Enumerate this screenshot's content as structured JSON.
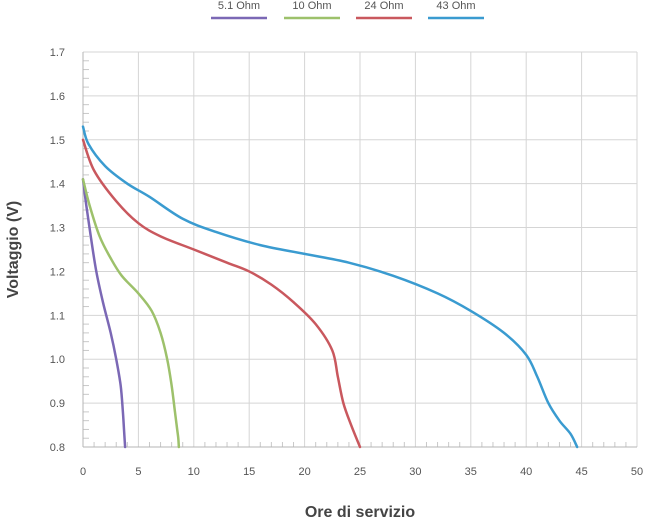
{
  "chart_data": {
    "type": "line",
    "title": "",
    "xlabel": "Ore di servizio",
    "ylabel": "Voltaggio (V)",
    "xlim": [
      0,
      50
    ],
    "ylim": [
      0.8,
      1.7
    ],
    "xticks": [
      0,
      5,
      10,
      15,
      20,
      25,
      30,
      35,
      40,
      45,
      50
    ],
    "yticks": [
      0.8,
      0.9,
      1.0,
      1.1,
      1.2,
      1.3,
      1.4,
      1.5,
      1.6,
      1.7
    ],
    "x_tick_labels": [
      "0",
      "5",
      "10",
      "15",
      "20",
      "25",
      "30",
      "35",
      "40",
      "45",
      "50"
    ],
    "y_tick_labels": [
      "0.8",
      "0.9",
      "1.0",
      "1.1",
      "1.2",
      "1.3",
      "1.4",
      "1.5",
      "1.6",
      "1.7"
    ],
    "grid": true,
    "legend_position": "top",
    "series": [
      {
        "name": "5.1 Ohm",
        "color": "#7b68b5",
        "x": [
          0,
          0.3,
          0.7,
          1.2,
          1.8,
          2.5,
          3.0,
          3.4,
          3.6,
          3.7,
          3.75,
          3.8
        ],
        "y": [
          1.41,
          1.35,
          1.28,
          1.2,
          1.13,
          1.06,
          1.0,
          0.94,
          0.88,
          0.84,
          0.82,
          0.8
        ]
      },
      {
        "name": "10 Ohm",
        "color": "#9dc16b",
        "x": [
          0,
          0.6,
          1.5,
          2.5,
          3.5,
          5.0,
          6.2,
          7.0,
          7.6,
          8.0,
          8.3,
          8.5,
          8.6,
          8.65
        ],
        "y": [
          1.41,
          1.35,
          1.28,
          1.23,
          1.19,
          1.15,
          1.11,
          1.06,
          1.0,
          0.94,
          0.88,
          0.84,
          0.82,
          0.8
        ]
      },
      {
        "name": "24 Ohm",
        "color": "#c9585e",
        "x": [
          0,
          1,
          3,
          5,
          7,
          10,
          13,
          15,
          17,
          19,
          21,
          22.5,
          23,
          23.5,
          24.2,
          25.0
        ],
        "y": [
          1.5,
          1.43,
          1.36,
          1.31,
          1.28,
          1.25,
          1.22,
          1.2,
          1.17,
          1.13,
          1.08,
          1.02,
          0.96,
          0.9,
          0.85,
          0.8
        ]
      },
      {
        "name": "43 Ohm",
        "color": "#3a9bd0",
        "x": [
          0,
          0.5,
          2,
          4,
          6,
          9,
          12,
          16,
          20,
          24,
          28,
          32,
          35,
          38,
          40,
          41,
          42,
          43,
          44,
          44.6
        ],
        "y": [
          1.53,
          1.49,
          1.44,
          1.4,
          1.37,
          1.32,
          1.29,
          1.26,
          1.24,
          1.22,
          1.19,
          1.15,
          1.11,
          1.06,
          1.01,
          0.96,
          0.9,
          0.86,
          0.83,
          0.8
        ]
      }
    ]
  }
}
